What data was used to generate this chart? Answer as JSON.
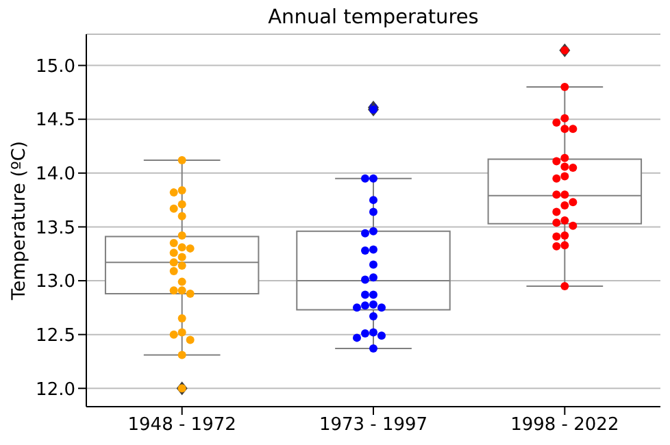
{
  "chart_data": {
    "type": "box",
    "title": "Annual temperatures",
    "ylabel": "Temperature (ºC)",
    "categories": [
      "1948 - 1972",
      "1973 - 1997",
      "1998 - 2022"
    ],
    "boxes": [
      {
        "low": 12.31,
        "q1": 12.88,
        "median": 13.17,
        "q3": 13.41,
        "high": 14.12,
        "outliers": [
          12.0
        ]
      },
      {
        "low": 12.37,
        "q1": 12.73,
        "median": 13.0,
        "q3": 13.46,
        "high": 13.95,
        "outliers": [
          14.61,
          14.59
        ]
      },
      {
        "low": 12.95,
        "q1": 13.53,
        "median": 13.79,
        "q3": 14.13,
        "high": 14.8,
        "outliers": [
          15.14
        ]
      }
    ],
    "series": [
      {
        "type": "scatter",
        "color": "#ffa500",
        "x": [
          "1948 - 1972",
          "1948 - 1972",
          "1948 - 1972",
          "1948 - 1972",
          "1948 - 1972",
          "1948 - 1972",
          "1948 - 1972",
          "1948 - 1972",
          "1948 - 1972",
          "1948 - 1972",
          "1948 - 1972",
          "1948 - 1972",
          "1948 - 1972",
          "1948 - 1972",
          "1948 - 1972",
          "1948 - 1972",
          "1948 - 1972",
          "1948 - 1972",
          "1948 - 1972",
          "1948 - 1972",
          "1948 - 1972",
          "1948 - 1972",
          "1948 - 1972",
          "1948 - 1972"
        ],
        "values": [
          14.12,
          13.84,
          13.82,
          13.71,
          13.67,
          13.6,
          13.42,
          13.35,
          13.31,
          13.3,
          13.26,
          13.22,
          13.17,
          13.14,
          13.09,
          12.99,
          12.91,
          12.91,
          12.88,
          12.65,
          12.52,
          12.5,
          12.45,
          12.31
        ]
      },
      {
        "type": "scatter",
        "color": "#0000ff",
        "x": [
          "1973 - 1997",
          "1973 - 1997",
          "1973 - 1997",
          "1973 - 1997",
          "1973 - 1997",
          "1973 - 1997",
          "1973 - 1997",
          "1973 - 1997",
          "1973 - 1997",
          "1973 - 1997",
          "1973 - 1997",
          "1973 - 1997",
          "1973 - 1997",
          "1973 - 1997",
          "1973 - 1997",
          "1973 - 1997",
          "1973 - 1997",
          "1973 - 1997",
          "1973 - 1997",
          "1973 - 1997",
          "1973 - 1997",
          "1973 - 1997",
          "1973 - 1997"
        ],
        "values": [
          13.95,
          13.95,
          13.75,
          13.64,
          13.46,
          13.44,
          13.29,
          13.28,
          13.15,
          13.03,
          13.01,
          12.87,
          12.87,
          12.78,
          12.77,
          12.75,
          12.75,
          12.67,
          12.52,
          12.51,
          12.49,
          12.47,
          12.37
        ]
      },
      {
        "type": "scatter",
        "color": "#ff0000",
        "x": [
          "1998 - 2022",
          "1998 - 2022",
          "1998 - 2022",
          "1998 - 2022",
          "1998 - 2022",
          "1998 - 2022",
          "1998 - 2022",
          "1998 - 2022",
          "1998 - 2022",
          "1998 - 2022",
          "1998 - 2022",
          "1998 - 2022",
          "1998 - 2022",
          "1998 - 2022",
          "1998 - 2022",
          "1998 - 2022",
          "1998 - 2022",
          "1998 - 2022",
          "1998 - 2022",
          "1998 - 2022",
          "1998 - 2022",
          "1998 - 2022",
          "1998 - 2022",
          "1998 - 2022"
        ],
        "values": [
          14.8,
          14.51,
          14.47,
          14.41,
          14.41,
          14.14,
          14.11,
          14.06,
          14.05,
          13.97,
          13.95,
          13.8,
          13.8,
          13.73,
          13.7,
          13.64,
          13.56,
          13.54,
          13.51,
          13.42,
          13.41,
          13.33,
          13.32,
          12.95
        ]
      }
    ],
    "ylim": [
      11.83,
      15.29
    ],
    "yticks": [
      {
        "value": 12,
        "label": "12.0"
      },
      12.5,
      {
        "value": 13,
        "label": "13.0"
      },
      13.5,
      {
        "value": 14,
        "label": "14.0"
      },
      14.5,
      {
        "value": 15,
        "label": "15.0"
      }
    ],
    "grid": "y",
    "marker": "circle"
  }
}
